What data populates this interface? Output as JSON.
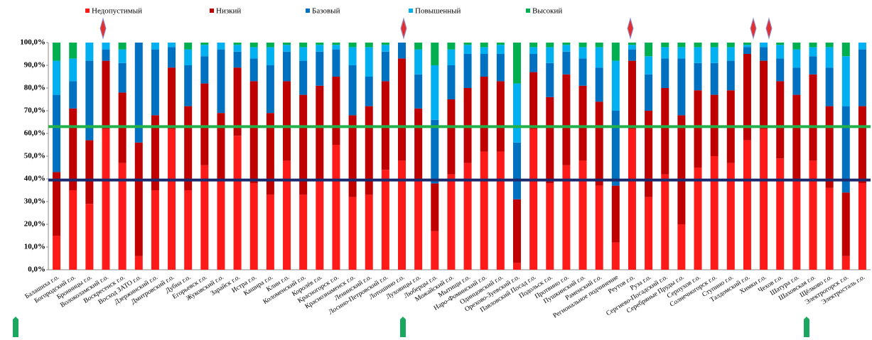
{
  "chart_data": {
    "type": "bar",
    "stacked": true,
    "categories": [
      "Балашиха г.о.",
      "Богородский г.о.",
      "Бронницы г.о.",
      "Волоколамский г.о.",
      "Воскресенск г.о.",
      "Восход ЗАТО г.о.",
      "Дзержинский г.о.",
      "Дмитровский г.о.",
      "Дубна г.о.",
      "Егорьевск г.о.",
      "Жуковский г.о.",
      "Зарайск г.о.",
      "Истра г.о.",
      "Кашира г.о.",
      "Клин г.о.",
      "Коломенский г.о.",
      "Королёв г.о.",
      "Красногорск г.о.",
      "Краснознаменск г.о.",
      "Ленинский г.о.",
      "Лосино-Петровский г.о.",
      "Лотошино г.о.",
      "Луховицы г.о.",
      "Люберцы г.о.",
      "Можайский г.о.",
      "Мытищи г.о.",
      "Наро-Фоминский г.о.",
      "Одинцовский г.о.",
      "Орехово-Зуевский г.о.",
      "Павловский Посад г.о.",
      "Подольск г.о.",
      "Протвино г.о.",
      "Пушкинский г.о.",
      "Раменский г.о.",
      "Региональное подчинение",
      "Реутов г.о.",
      "Руза г.о.",
      "Сергиево-Посадский г.о.",
      "Серебряные Пруды г.о.",
      "Серпухов г.о.",
      "Солнечногорск г.о.",
      "Ступино г.о.",
      "Талдомский г.о.",
      "Химки г.о.",
      "Чехов г.о.",
      "Шатура г.о.",
      "Шаховская г.о.",
      "Щёлково г.о.",
      "Электрогорск г.о.",
      "Электросталь г.о."
    ],
    "series": [
      {
        "name": "Недопустимый",
        "color": "#ff1a1a",
        "values": [
          15,
          35,
          29,
          62,
          47,
          6,
          35,
          62,
          35,
          46,
          40,
          59,
          38,
          33,
          48,
          33,
          40,
          55,
          32,
          33,
          44,
          48,
          40,
          17,
          42,
          47,
          52,
          52,
          3,
          62,
          38,
          46,
          48,
          37,
          12,
          62,
          32,
          42,
          20,
          45,
          50,
          47,
          57,
          62,
          49,
          39,
          48,
          36,
          6,
          38
        ]
      },
      {
        "name": "Низкий",
        "color": "#c00000",
        "values": [
          28,
          36,
          28,
          30,
          31,
          50,
          33,
          27,
          37,
          36,
          29,
          30,
          45,
          36,
          35,
          44,
          41,
          30,
          36,
          39,
          39,
          45,
          31,
          21,
          33,
          33,
          33,
          31,
          28,
          25,
          38,
          40,
          33,
          37,
          25,
          30,
          38,
          38,
          48,
          34,
          27,
          32,
          38,
          30,
          34,
          38,
          38,
          36,
          28,
          34
        ]
      },
      {
        "name": "Базовый",
        "color": "#0070c0",
        "values": [
          34,
          12,
          35,
          5,
          13,
          44,
          29,
          9,
          18,
          12,
          28,
          7,
          10,
          21,
          13,
          15,
          15,
          12,
          22,
          13,
          13,
          7,
          15,
          28,
          15,
          15,
          10,
          12,
          25,
          8,
          15,
          10,
          12,
          15,
          33,
          5,
          16,
          13,
          25,
          12,
          14,
          13,
          3,
          6,
          10,
          12,
          8,
          17,
          38,
          25
        ]
      },
      {
        "name": "Повышенный",
        "color": "#00b0f0",
        "values": [
          15,
          10,
          8,
          3,
          6,
          0,
          3,
          2,
          7,
          5,
          3,
          3,
          5,
          8,
          3,
          6,
          3,
          2,
          8,
          13,
          3,
          0,
          11,
          24,
          7,
          4,
          3,
          4,
          26,
          3,
          7,
          3,
          5,
          9,
          22,
          2,
          8,
          5,
          5,
          7,
          7,
          6,
          1,
          2,
          6,
          8,
          4,
          9,
          22,
          3
        ]
      },
      {
        "name": "Высокий",
        "color": "#00b050",
        "values": [
          8,
          7,
          0,
          0,
          3,
          0,
          0,
          0,
          3,
          1,
          0,
          1,
          2,
          2,
          1,
          2,
          1,
          1,
          2,
          2,
          1,
          0,
          3,
          10,
          3,
          1,
          2,
          1,
          18,
          2,
          2,
          1,
          2,
          2,
          8,
          1,
          6,
          2,
          2,
          2,
          2,
          2,
          1,
          0,
          1,
          3,
          2,
          2,
          6,
          0
        ]
      }
    ],
    "ylim": [
      0,
      100
    ],
    "yticks": [
      {
        "value": 0,
        "label": "0,0%"
      },
      {
        "value": 10,
        "label": "10,0%"
      },
      {
        "value": 20,
        "label": "20,0%"
      },
      {
        "value": 30,
        "label": "30,0%"
      },
      {
        "value": 40,
        "label": "40,0%"
      },
      {
        "value": 50,
        "label": "50,0%"
      },
      {
        "value": 60,
        "label": "60,0%"
      },
      {
        "value": 70,
        "label": "70,0%"
      },
      {
        "value": 80,
        "label": "80,0%"
      },
      {
        "value": 90,
        "label": "90,0%"
      },
      {
        "value": 100,
        "label": "100,0%"
      }
    ],
    "reference_lines": [
      {
        "value": 63,
        "color": "#22b04a"
      },
      {
        "value": 39.5,
        "color": "#1a2a6c"
      }
    ],
    "legend": "top"
  }
}
